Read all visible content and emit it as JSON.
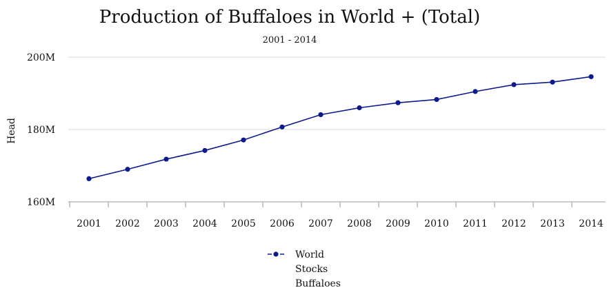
{
  "chart_data": {
    "type": "line",
    "title": "Production of Buffaloes in World + (Total)",
    "subtitle": "2001 - 2014",
    "ylabel": "Head",
    "xlabel": "",
    "ylim": [
      160000000,
      200000000
    ],
    "yticks": [
      {
        "value": 160000000,
        "label": "160M"
      },
      {
        "value": 180000000,
        "label": "180M"
      },
      {
        "value": 200000000,
        "label": "200M"
      }
    ],
    "categories": [
      "2001",
      "2002",
      "2003",
      "2004",
      "2005",
      "2006",
      "2007",
      "2008",
      "2009",
      "2010",
      "2011",
      "2012",
      "2013",
      "2014"
    ],
    "series": [
      {
        "name": "World Stocks Buffaloes",
        "legend_lines": [
          "World",
          "Stocks",
          "Buffaloes"
        ],
        "color": "#0d1a8c",
        "values": [
          166400000,
          169000000,
          171800000,
          174200000,
          177100000,
          180700000,
          184100000,
          186000000,
          187400000,
          188300000,
          190500000,
          192400000,
          193100000,
          194600000
        ]
      }
    ],
    "grid": true,
    "legend_position": "bottom"
  }
}
